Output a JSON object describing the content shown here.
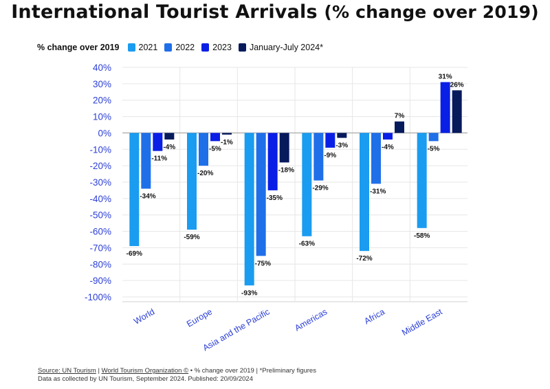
{
  "title": "International Tourist Arrivals",
  "title_suffix": "(% change over 2019)",
  "chart_data": {
    "type": "bar",
    "legend_title": "% change over 2019",
    "categories": [
      "World",
      "Europe",
      "Asia and the Pacific",
      "Americas",
      "Africa",
      "Middle East"
    ],
    "series": [
      {
        "name": "2021",
        "color": "#1a9cf0",
        "values": [
          -69,
          -59,
          -93,
          -63,
          -72,
          -58
        ]
      },
      {
        "name": "2022",
        "color": "#1f6fe8",
        "values": [
          -34,
          -20,
          -75,
          -29,
          -31,
          -5
        ]
      },
      {
        "name": "2023",
        "color": "#0a1fe6",
        "values": [
          -11,
          -5,
          -35,
          -9,
          -4,
          31
        ]
      },
      {
        "name": "January-July 2024*",
        "color": "#071a5c",
        "values": [
          -4,
          -1,
          -18,
          -3,
          7,
          26
        ]
      }
    ],
    "value_labels": [
      [
        "-69%",
        "-34%",
        "-11%",
        "-4%"
      ],
      [
        "-59%",
        "-20%",
        "-5%",
        "-1%"
      ],
      [
        "-93%",
        "-75%",
        "-35%",
        "-18%"
      ],
      [
        "-63%",
        "-29%",
        "-9%",
        "-3%"
      ],
      [
        "-72%",
        "-31%",
        "-4%",
        "7%"
      ],
      [
        "-58%",
        "-5%",
        "31%",
        "26%"
      ]
    ],
    "yticks": [
      "40%",
      "30%",
      "20%",
      "10%",
      "0%",
      "-10%",
      "-20%",
      "-30%",
      "-40%",
      "-50%",
      "-60%",
      "-70%",
      "-80%",
      "-90%",
      "-100%"
    ],
    "ylim": [
      -100,
      40
    ],
    "grid": true,
    "tick_color": "#2b3fd6"
  },
  "footer": {
    "source_label": "Source: UN Tourism",
    "separator": " | ",
    "org_label": "World Tourism Organization ©",
    "note": " • % change over 2019 | *Preliminary figures",
    "line2": "Data as collected by UN Tourism, September 2024. Published: 20/09/2024"
  }
}
